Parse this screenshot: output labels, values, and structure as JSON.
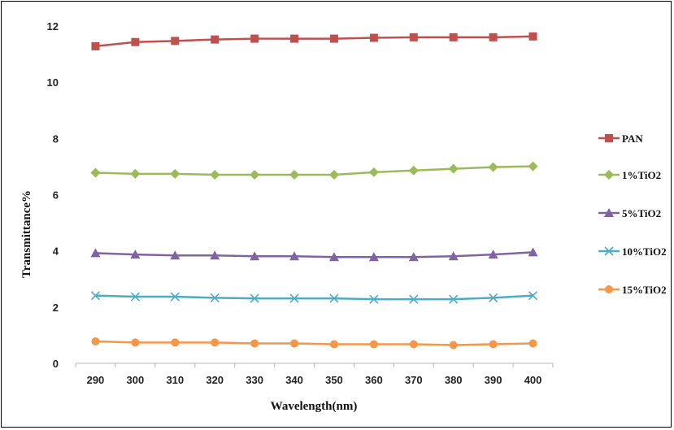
{
  "chart_data": {
    "type": "line",
    "xlabel": "Wavelength(nm)",
    "ylabel": "Transmittance%",
    "x": [
      290,
      300,
      310,
      320,
      330,
      340,
      350,
      360,
      370,
      380,
      390,
      400
    ],
    "ylim": [
      0,
      12
    ],
    "yticks": [
      0,
      2,
      4,
      6,
      8,
      10,
      12
    ],
    "grid": false,
    "legend_position": "right",
    "series": [
      {
        "name": "PAN",
        "color": "#C0504D",
        "marker": "square",
        "values": [
          11.28,
          11.43,
          11.47,
          11.52,
          11.55,
          11.55,
          11.55,
          11.58,
          11.6,
          11.6,
          11.6,
          11.63
        ]
      },
      {
        "name": "1%TiO2",
        "color": "#9BBB59",
        "marker": "diamond",
        "values": [
          6.78,
          6.74,
          6.74,
          6.71,
          6.71,
          6.71,
          6.71,
          6.8,
          6.86,
          6.92,
          6.98,
          7.01
        ]
      },
      {
        "name": "5%TiO2",
        "color": "#8064A2",
        "marker": "triangle",
        "values": [
          3.92,
          3.87,
          3.84,
          3.84,
          3.81,
          3.81,
          3.78,
          3.78,
          3.78,
          3.81,
          3.87,
          3.95
        ]
      },
      {
        "name": "10%TiO2",
        "color": "#4BACC6",
        "marker": "x",
        "values": [
          2.41,
          2.37,
          2.37,
          2.33,
          2.31,
          2.31,
          2.31,
          2.28,
          2.28,
          2.28,
          2.33,
          2.41
        ]
      },
      {
        "name": "15%TiO2",
        "color": "#F79646",
        "marker": "circle",
        "values": [
          0.78,
          0.74,
          0.74,
          0.74,
          0.71,
          0.71,
          0.68,
          0.68,
          0.68,
          0.65,
          0.68,
          0.71
        ]
      }
    ]
  }
}
